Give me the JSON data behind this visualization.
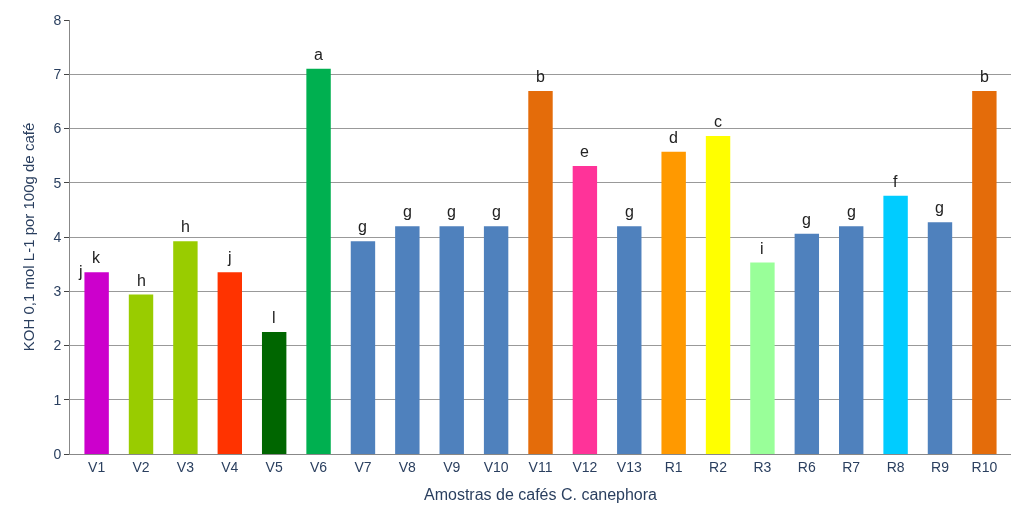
{
  "chart_data": {
    "type": "bar",
    "xlabel": "Amostras de cafés C. canephora",
    "ylabel": "KOH 0,1 mol L-1 por 100g de café",
    "categories": [
      "V1",
      "V2",
      "V3",
      "V4",
      "V5",
      "V6",
      "V7",
      "V8",
      "V9",
      "V10",
      "V11",
      "V12",
      "V13",
      "R1",
      "R2",
      "R3",
      "R6",
      "R7",
      "R8",
      "R9",
      "R10"
    ],
    "values": [
      3.35,
      2.94,
      3.92,
      3.35,
      2.25,
      7.1,
      3.92,
      4.2,
      4.2,
      4.2,
      6.69,
      5.31,
      4.2,
      5.57,
      5.86,
      3.53,
      4.06,
      4.2,
      4.76,
      4.27,
      6.69
    ],
    "colors": [
      "#cc00cc",
      "#99cc00",
      "#99cc00",
      "#ff3300",
      "#006600",
      "#00b050",
      "#4f81bd",
      "#4f81bd",
      "#4f81bd",
      "#4f81bd",
      "#e46c0a",
      "#ff3399",
      "#4f81bd",
      "#ff9900",
      "#ffff00",
      "#99ff99",
      "#4f81bd",
      "#4f81bd",
      "#00ccff",
      "#4f81bd",
      "#e46c0a"
    ],
    "ylim": [
      0,
      8
    ],
    "yticks": [
      0,
      1,
      2,
      3,
      4,
      5,
      6,
      7,
      8
    ],
    "grid": "y",
    "annotations": [
      {
        "text": "k",
        "x": "V1",
        "y": 3.35
      },
      {
        "text": "j",
        "x": "V1",
        "y": 3.35
      },
      {
        "text": "h",
        "x": "V2",
        "y": 2.94
      },
      {
        "text": "h",
        "x": "V3",
        "y": 3.92
      },
      {
        "text": "j",
        "x": "V4",
        "y": 3.35
      },
      {
        "text": "l",
        "x": "V5",
        "y": 2.25
      },
      {
        "text": "a",
        "x": "V6",
        "y": 7.1
      },
      {
        "text": "g",
        "x": "V7",
        "y": 3.92
      },
      {
        "text": "g",
        "x": "V8",
        "y": 4.2
      },
      {
        "text": "g",
        "x": "V9",
        "y": 4.2
      },
      {
        "text": "g",
        "x": "V10",
        "y": 4.2
      },
      {
        "text": "b",
        "x": "V11",
        "y": 6.69
      },
      {
        "text": "e",
        "x": "V12",
        "y": 5.31
      },
      {
        "text": "g",
        "x": "V13",
        "y": 4.2
      },
      {
        "text": "d",
        "x": "R1",
        "y": 5.57
      },
      {
        "text": "c",
        "x": "R2",
        "y": 5.86
      },
      {
        "text": "i",
        "x": "R3",
        "y": 3.53
      },
      {
        "text": "g",
        "x": "R6",
        "y": 4.06
      },
      {
        "text": "g",
        "x": "R7",
        "y": 4.2
      },
      {
        "text": "f",
        "x": "R8",
        "y": 4.76
      },
      {
        "text": "g",
        "x": "R9",
        "y": 4.27
      },
      {
        "text": "b",
        "x": "R10",
        "y": 6.69
      }
    ]
  }
}
